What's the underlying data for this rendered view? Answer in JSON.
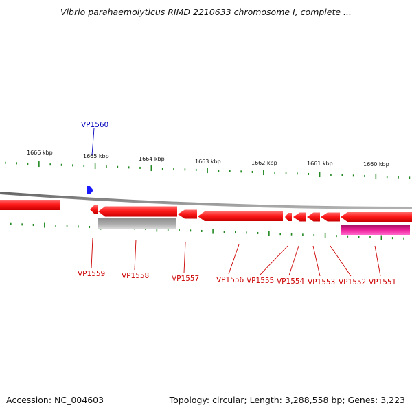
{
  "title": "Vibrio parahaemolyticus RIMD 2210633 chromosome I, complete ...",
  "footer": {
    "accession": "Accession: NC_004603",
    "summary": "Topology: circular; Length: 3,288,558 bp; Genes: 3,223"
  },
  "colors": {
    "gene_reverse": "#ff1a1a",
    "gene_forward": "#1a1aff",
    "pseudo": "#bbbbbb",
    "rna": "#ee2299",
    "tick": "#228822",
    "backbone": "#888888",
    "label_reverse": "#cc0000",
    "label_forward": "#0000bb"
  },
  "axis_labels": [
    "1666 kbp",
    "1665 kbp",
    "1664 kbp",
    "1663 kbp",
    "1662 kbp",
    "1661 kbp",
    "1660 kbp"
  ],
  "genes": [
    {
      "name": "VP1560",
      "strand": "+"
    },
    {
      "name": "VP1559",
      "strand": "-"
    },
    {
      "name": "VP1558",
      "strand": "-"
    },
    {
      "name": "VP1557",
      "strand": "-"
    },
    {
      "name": "VP1556",
      "strand": "-"
    },
    {
      "name": "VP1555",
      "strand": "-"
    },
    {
      "name": "VP1554",
      "strand": "-"
    },
    {
      "name": "VP1553",
      "strand": "-"
    },
    {
      "name": "VP1552",
      "strand": "-"
    },
    {
      "name": "VP1551",
      "strand": "-"
    }
  ]
}
